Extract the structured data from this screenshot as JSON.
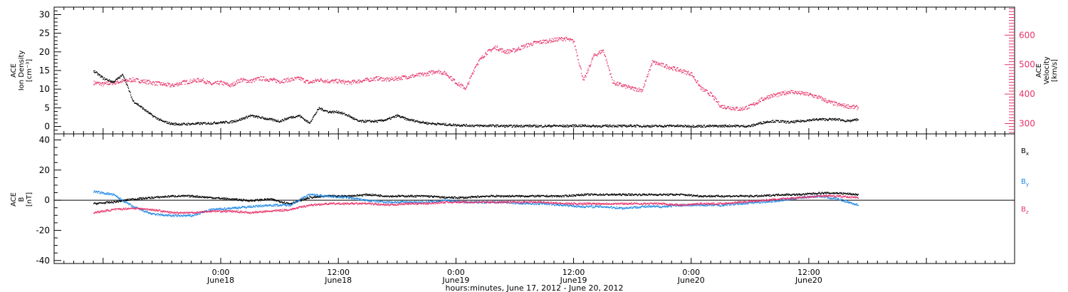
{
  "chart_data": [
    {
      "type": "scatter",
      "panel": "top",
      "left_axis": {
        "label_lines": [
          "ACE",
          "Ion Density",
          "[cm⁻³]"
        ],
        "range": [
          -2,
          32
        ],
        "ticks": [
          0,
          5,
          10,
          15,
          20,
          25,
          30
        ],
        "color": "#000000"
      },
      "right_axis": {
        "label_lines": [
          "ACE",
          "Velocity",
          "[km/s]"
        ],
        "range": [
          265,
          695
        ],
        "ticks": [
          300,
          400,
          500,
          600
        ],
        "color": "#e8336a"
      },
      "grid": false,
      "series": [
        {
          "axis": "left",
          "color": "#000000",
          "hours": [
            0,
            1,
            2,
            3,
            4,
            5,
            6,
            7,
            8,
            9,
            10,
            11,
            12,
            13,
            14,
            15,
            16,
            17,
            18,
            19,
            20,
            21,
            22,
            23,
            24,
            25,
            26,
            27,
            28,
            29,
            30,
            31,
            32,
            33,
            34,
            35,
            36,
            37,
            38,
            39,
            40,
            41,
            42,
            43,
            44,
            45,
            46,
            47,
            48,
            49,
            50,
            51,
            52,
            53,
            54,
            55,
            56,
            57,
            58,
            59,
            60,
            61,
            62,
            63,
            64,
            65,
            66,
            67,
            68,
            69,
            70,
            71,
            72,
            73,
            74,
            75,
            76,
            77,
            78
          ],
          "values": [
            15,
            13,
            12,
            14,
            7,
            5,
            3,
            1.5,
            0.8,
            0.7,
            0.8,
            0.9,
            1,
            1.2,
            1.3,
            2,
            3,
            2.5,
            2,
            1.5,
            2.5,
            3,
            1,
            5,
            4,
            4,
            3,
            1.5,
            1.5,
            1.5,
            2,
            3,
            2,
            1.5,
            1,
            0.8,
            0.6,
            0.5,
            0.4,
            0.3,
            0.3,
            0.3,
            0.2,
            0.2,
            0.3,
            0.2,
            0.2,
            0.3,
            0.2,
            0.3,
            0.3,
            0.2,
            0.2,
            0.3,
            0.2,
            0.3,
            0.2,
            0.2,
            0.2,
            0.3,
            0.2,
            0.2,
            0.2,
            0.2,
            0.2,
            0.3,
            0.2,
            0.2,
            1,
            1.5,
            1.5,
            1.2,
            1.5,
            1.8,
            2,
            2,
            2,
            1.5,
            2
          ]
        },
        {
          "axis": "right",
          "color": "#e8336a",
          "hours": [
            0,
            1,
            2,
            3,
            4,
            5,
            6,
            7,
            8,
            9,
            10,
            11,
            12,
            13,
            14,
            15,
            16,
            17,
            18,
            19,
            20,
            21,
            22,
            23,
            24,
            25,
            26,
            27,
            28,
            29,
            30,
            31,
            32,
            33,
            34,
            35,
            36,
            37,
            38,
            39,
            40,
            41,
            42,
            43,
            44,
            45,
            46,
            47,
            48,
            49,
            50,
            51,
            52,
            53,
            54,
            55,
            56,
            57,
            58,
            59,
            60,
            61,
            62,
            63,
            64,
            65,
            66,
            67,
            68,
            69,
            70,
            71,
            72,
            73,
            74,
            75,
            76,
            77,
            78
          ],
          "values": [
            440,
            435,
            440,
            445,
            450,
            445,
            440,
            435,
            430,
            440,
            445,
            450,
            435,
            440,
            430,
            450,
            445,
            455,
            450,
            445,
            450,
            455,
            440,
            450,
            445,
            445,
            440,
            445,
            450,
            455,
            450,
            455,
            460,
            465,
            470,
            480,
            470,
            440,
            420,
            500,
            540,
            560,
            545,
            550,
            565,
            575,
            580,
            585,
            590,
            580,
            445,
            530,
            550,
            440,
            430,
            420,
            415,
            510,
            500,
            490,
            480,
            470,
            420,
            400,
            360,
            355,
            350,
            360,
            380,
            395,
            400,
            410,
            405,
            400,
            390,
            375,
            365,
            360,
            355
          ]
        }
      ]
    },
    {
      "type": "scatter",
      "panel": "bottom",
      "left_axis": {
        "label_lines": [
          "ACE",
          "B",
          "[nT]"
        ],
        "range": [
          -42,
          44
        ],
        "ticks": [
          -40,
          -20,
          0,
          20,
          40
        ],
        "color": "#000000"
      },
      "grid": false,
      "zero_line": true,
      "series": [
        {
          "name": "Bx",
          "color": "#000000",
          "hours": [
            0,
            2,
            4,
            6,
            8,
            10,
            12,
            14,
            16,
            18,
            20,
            22,
            24,
            26,
            28,
            30,
            32,
            34,
            36,
            38,
            40,
            42,
            44,
            46,
            48,
            50,
            52,
            54,
            56,
            58,
            60,
            62,
            64,
            66,
            68,
            70,
            72,
            74,
            76,
            78
          ],
          "values": [
            -2,
            -1,
            1,
            2,
            3,
            3,
            2,
            1,
            0,
            1,
            -2,
            2,
            3,
            3,
            4,
            3,
            3,
            3,
            2,
            2,
            3,
            3,
            3,
            3,
            3,
            4,
            4,
            4,
            4,
            4,
            4,
            3,
            3,
            3,
            3,
            4,
            4,
            5,
            5,
            4
          ]
        },
        {
          "name": "By",
          "color": "#1e88e5",
          "hours": [
            0,
            2,
            4,
            6,
            8,
            10,
            12,
            14,
            16,
            18,
            20,
            22,
            24,
            26,
            28,
            30,
            32,
            34,
            36,
            38,
            40,
            42,
            44,
            46,
            48,
            50,
            52,
            54,
            56,
            58,
            60,
            62,
            64,
            66,
            68,
            70,
            72,
            74,
            76,
            78
          ],
          "values": [
            6,
            4,
            -4,
            -9,
            -10,
            -10,
            -6,
            -5,
            -4,
            -3,
            -3,
            4,
            3,
            2,
            0,
            -1,
            -1,
            -1,
            0,
            -1,
            -1,
            -1,
            -2,
            -2,
            -3,
            -4,
            -4,
            -5,
            -4,
            -4,
            -3,
            -3,
            -3,
            -2,
            -1,
            0,
            2,
            3,
            1,
            -3
          ]
        },
        {
          "name": "Bz",
          "color": "#e8336a",
          "hours": [
            0,
            2,
            4,
            6,
            8,
            10,
            12,
            14,
            16,
            18,
            20,
            22,
            24,
            26,
            28,
            30,
            32,
            34,
            36,
            38,
            40,
            42,
            44,
            46,
            48,
            50,
            52,
            54,
            56,
            58,
            60,
            62,
            64,
            66,
            68,
            70,
            72,
            74,
            76,
            78
          ],
          "values": [
            -8,
            -6,
            -5,
            -6,
            -8,
            -8,
            -7,
            -7,
            -8,
            -7,
            -6,
            -3,
            -2,
            -2,
            -2,
            -3,
            -2,
            -2,
            -1,
            -1,
            -1,
            -1,
            -1,
            -1,
            -2,
            -2,
            -2,
            -2,
            -2,
            -2,
            -3,
            -2,
            -2,
            -1,
            0,
            1,
            2,
            3,
            3,
            2
          ]
        }
      ]
    }
  ],
  "x_axis": {
    "range_hours": [
      -4,
      94
    ],
    "ticks": [
      {
        "hour": 13,
        "time": "0:00",
        "date": "June18"
      },
      {
        "hour": 25,
        "time": "12:00",
        "date": "June18"
      },
      {
        "hour": 37,
        "time": "0:00",
        "date": "June19"
      },
      {
        "hour": 49,
        "time": "12:00",
        "date": "June19"
      },
      {
        "hour": 61,
        "time": "0:00",
        "date": "June20"
      },
      {
        "hour": 73,
        "time": "12:00",
        "date": "June20"
      }
    ],
    "label": "hours:minutes, June 17, 2012 - June 20, 2012"
  },
  "legend": {
    "placement": "right",
    "entries": [
      {
        "base": "B",
        "sub": "x",
        "color": "#000000"
      },
      {
        "base": "B",
        "sub": "y",
        "color": "#1e88e5"
      },
      {
        "base": "B",
        "sub": "z",
        "color": "#e8336a"
      }
    ]
  }
}
